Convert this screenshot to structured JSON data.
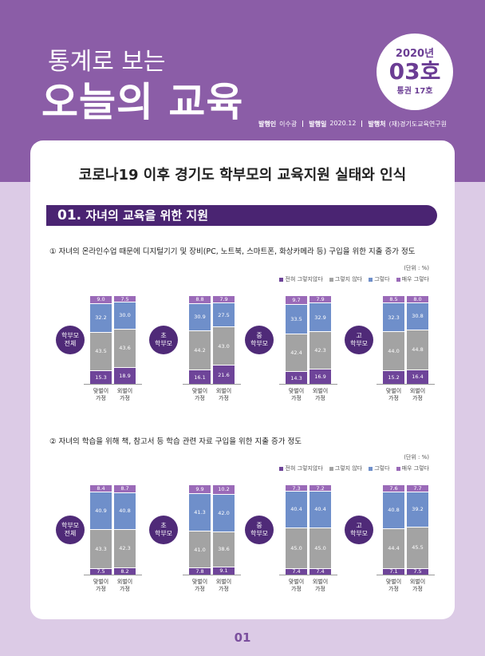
{
  "header": {
    "title_small": "통계로 보는",
    "title_large": "오늘의 교육",
    "year": "2020년",
    "issue": "03호",
    "volume": "통권 17호",
    "publisher_label": "발행인",
    "publisher": "이수광",
    "date_label": "발행일",
    "date": "2020.12",
    "issuer_label": "발행처",
    "issuer": "(재)경기도교육연구원"
  },
  "main_title": "코로나19 이후 경기도 학부모의 교육지원 실태와 인식",
  "section": {
    "number": "01.",
    "title": "자녀의 교육을 위한 지원"
  },
  "page_number": "01",
  "chart_data": [
    {
      "type": "bar",
      "stacked": true,
      "title": "① 자녀의 온라인수업 때문에 디지털기기 및 장비(PC, 노트북, 스마트폰, 화상카메라 등) 구입을 위한 지출 증가 정도",
      "unit": "(단위 : %)",
      "ylim": [
        0,
        100
      ],
      "groups": [
        "학부모 전체",
        "초 학부모",
        "중 학부모",
        "고 학부모"
      ],
      "categories": [
        "맞벌이 가정",
        "외벌이 가정"
      ],
      "series": [
        {
          "name": "전혀 그렇지않다",
          "color": "#6e4499",
          "values": [
            [
              15.3,
              18.9
            ],
            [
              16.1,
              21.6
            ],
            [
              14.3,
              16.9
            ],
            [
              15.2,
              16.4
            ]
          ],
          "value_labels": [
            [
              "15.3",
              "18.9"
            ],
            [
              "16.1",
              "21.6"
            ],
            [
              "14.3",
              "16.9"
            ],
            [
              "15.2",
              "16.4"
            ]
          ]
        },
        {
          "name": "그렇지 않다",
          "color": "#a3a3a3",
          "values": [
            [
              43.5,
              43.6
            ],
            [
              44.2,
              43.0
            ],
            [
              42.4,
              42.3
            ],
            [
              44.0,
              44.8
            ]
          ],
          "value_labels": [
            [
              "43.5",
              "43.6"
            ],
            [
              "44.2",
              "43.0"
            ],
            [
              "42.4",
              "42.3"
            ],
            [
              "44.0",
              "44.8"
            ]
          ]
        },
        {
          "name": "그렇다",
          "color": "#6f8fca",
          "values": [
            [
              32.2,
              30.0
            ],
            [
              30.9,
              27.5
            ],
            [
              33.5,
              32.9
            ],
            [
              32.3,
              30.8
            ]
          ],
          "value_labels": [
            [
              "32.2",
              "30.0"
            ],
            [
              "30.9",
              "27.5"
            ],
            [
              "33.5",
              "32.9"
            ],
            [
              "32.3",
              "30.8"
            ]
          ]
        },
        {
          "name": "매우 그렇다",
          "color": "#9a6ab8",
          "values": [
            [
              9.0,
              7.5
            ],
            [
              8.8,
              7.9
            ],
            [
              9.7,
              7.9
            ],
            [
              8.5,
              8.0
            ]
          ],
          "value_labels": [
            [
              "9.0",
              "7.5"
            ],
            [
              "8.8",
              "7.9"
            ],
            [
              "9.7",
              "7.9"
            ],
            [
              "8.5",
              "8.0"
            ]
          ]
        }
      ]
    },
    {
      "type": "bar",
      "stacked": true,
      "title": "② 자녀의 학습을 위해 책, 참고서 등 학습 관련 자료 구입을 위한 지출 증가 정도",
      "unit": "(단위 : %)",
      "ylim": [
        0,
        100
      ],
      "groups": [
        "학부모 전체",
        "초 학부모",
        "중 학부모",
        "고 학부모"
      ],
      "categories": [
        "맞벌이 가정",
        "외벌이 가정"
      ],
      "series": [
        {
          "name": "전혀 그렇지않다",
          "color": "#6e4499",
          "values": [
            [
              7.5,
              8.2
            ],
            [
              7.8,
              9.1
            ],
            [
              7.4,
              7.4
            ],
            [
              7.1,
              7.5
            ]
          ],
          "value_labels": [
            [
              "7.5",
              "8.2"
            ],
            [
              "7.8",
              "9.1"
            ],
            [
              "7.4",
              "7.4"
            ],
            [
              "7.1",
              "7.5"
            ]
          ]
        },
        {
          "name": "그렇지 않다",
          "color": "#a3a3a3",
          "values": [
            [
              43.3,
              42.3
            ],
            [
              41.0,
              38.6
            ],
            [
              45.0,
              45.0
            ],
            [
              44.4,
              45.5
            ]
          ],
          "value_labels": [
            [
              "43.3",
              "42.3"
            ],
            [
              "41.0",
              "38.6"
            ],
            [
              "45.0",
              "45.0"
            ],
            [
              "44.4",
              "45.5"
            ]
          ]
        },
        {
          "name": "그렇다",
          "color": "#6f8fca",
          "values": [
            [
              40.9,
              40.8
            ],
            [
              41.3,
              42.0
            ],
            [
              40.4,
              40.4
            ],
            [
              40.8,
              39.2
            ]
          ],
          "value_labels": [
            [
              "40.9",
              "40.8"
            ],
            [
              "41.3",
              "42.0"
            ],
            [
              "40.4",
              "40.4"
            ],
            [
              "40.8",
              "39.2"
            ]
          ]
        },
        {
          "name": "매우 그렇다",
          "color": "#9a6ab8",
          "values": [
            [
              8.4,
              8.7
            ],
            [
              9.9,
              10.2
            ],
            [
              7.3,
              7.2
            ],
            [
              7.6,
              7.7
            ]
          ],
          "value_labels": [
            [
              "8.4",
              "8.7"
            ],
            [
              "9.9",
              "10.2"
            ],
            [
              "7.3",
              "7.2"
            ],
            [
              "7.6",
              "7.7"
            ]
          ]
        }
      ]
    }
  ]
}
